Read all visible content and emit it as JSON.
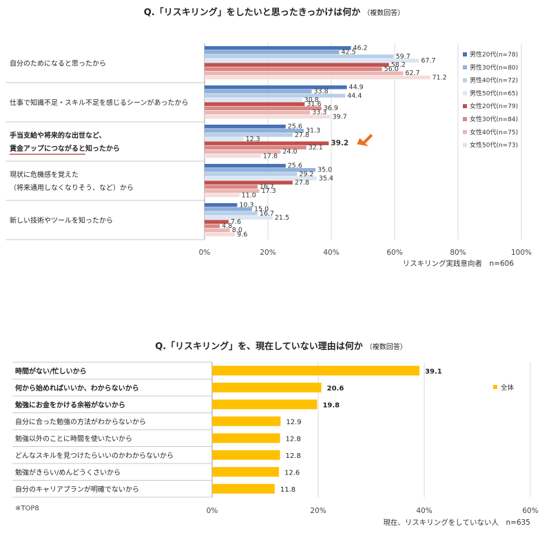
{
  "chart_data": [
    {
      "type": "bar",
      "title": "Q.「リスキリング」をしたいと思ったきっかけは何か",
      "title_note": "（複数回答）",
      "categories": [
        [
          "自分のためになると思ったから"
        ],
        [
          "仕事で知識不足・スキル不足を感じるシーンがあったから"
        ],
        [
          "手当支給や将来的な出世など、",
          "賃金アップにつながると知ったから"
        ],
        [
          "現状に危機感を覚えた",
          "（将来通用しなくなりそう、など）から"
        ],
        [
          "新しい技術やツールを知ったから"
        ]
      ],
      "bold_categories": [
        2
      ],
      "highlight": {
        "category": 2,
        "series": 4
      },
      "series": [
        {
          "name": "男性20代(n=78)",
          "color": "#4a72b5",
          "values": [
            46.2,
            44.9,
            25.6,
            25.6,
            10.3
          ]
        },
        {
          "name": "男性30代(n=80)",
          "color": "#8eb0db",
          "values": [
            42.5,
            33.8,
            31.3,
            35.0,
            15.0
          ]
        },
        {
          "name": "男性40代(n=72)",
          "color": "#b9cfe9",
          "values": [
            59.7,
            44.4,
            27.8,
            29.2,
            16.7
          ]
        },
        {
          "name": "男性50代(n=65)",
          "color": "#dae6f4",
          "values": [
            67.7,
            30.8,
            12.3,
            35.4,
            21.5
          ]
        },
        {
          "name": "女性20代(n=79)",
          "color": "#c0504d",
          "values": [
            58.2,
            31.6,
            39.2,
            27.8,
            7.6
          ]
        },
        {
          "name": "女性30代(n=84)",
          "color": "#da8785",
          "values": [
            56.0,
            36.9,
            32.1,
            16.7,
            4.8
          ]
        },
        {
          "name": "女性40代(n=75)",
          "color": "#ebb6b4",
          "values": [
            62.7,
            33.3,
            24.0,
            17.3,
            8.0
          ]
        },
        {
          "name": "女性50代(n=73)",
          "color": "#f5dddc",
          "values": [
            71.2,
            39.7,
            17.8,
            11.0,
            9.6
          ]
        }
      ],
      "xlim": [
        0,
        100
      ],
      "xticks": [
        "0%",
        "20%",
        "40%",
        "60%",
        "80%",
        "100%"
      ],
      "legend": "right",
      "footnote": "リスキリング実践意向者　n=606"
    },
    {
      "type": "bar",
      "title": "Q.「リスキリング」を、現在していない理由は何か",
      "title_note": "（複数回答）",
      "categories": [
        "時間がない/忙しいから",
        "何から始めればいいか、わからないから",
        "勉強にお金をかける余裕がないから",
        "自分に合った勉強の方法がわからないから",
        "勉強以外のことに時間を使いたいから",
        "どんなスキルを見つけたらいいのかわからないから",
        "勉強がきらい/めんどうくさいから",
        "自分のキャリアプランが明確でないから"
      ],
      "bold_categories": [
        0,
        1,
        2
      ],
      "series": [
        {
          "name": "全体",
          "color": "#ffc000",
          "values": [
            39.1,
            20.6,
            19.8,
            12.9,
            12.8,
            12.8,
            12.6,
            11.8
          ]
        }
      ],
      "xlim": [
        0,
        60
      ],
      "xticks": [
        "0%",
        "20%",
        "40%",
        "60%"
      ],
      "legend": "right",
      "note": "※TOP8",
      "footnote": "現在、リスキリングをしていない人　n=635"
    }
  ]
}
